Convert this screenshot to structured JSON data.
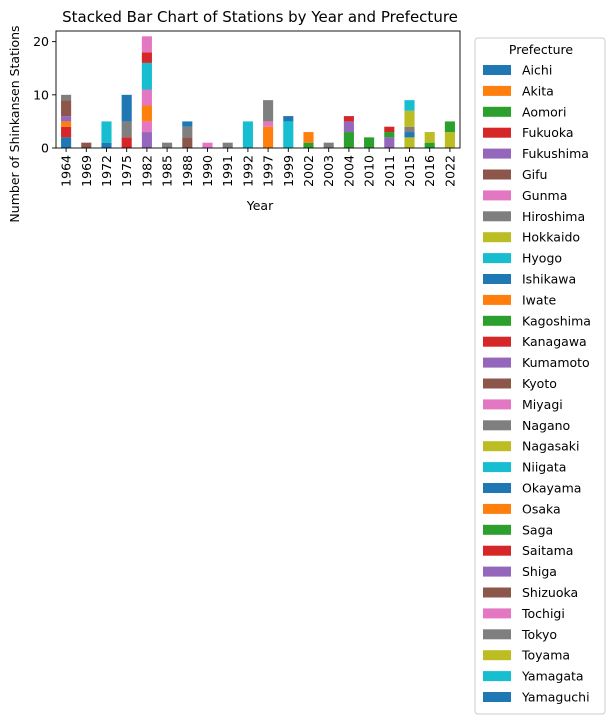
{
  "chart_data": {
    "type": "bar",
    "stacked": true,
    "title": "Stacked Bar Chart of Stations by Year and Prefecture",
    "xlabel": "Year",
    "ylabel": "Number of Shinkansen Stations",
    "ylim": [
      0,
      22
    ],
    "yticks": [
      0,
      10,
      20
    ],
    "grid": false,
    "legend_title": "Prefecture",
    "legend_position": "outside right",
    "categories": [
      "1964",
      "1969",
      "1972",
      "1975",
      "1982",
      "1985",
      "1988",
      "1990",
      "1991",
      "1992",
      "1997",
      "1999",
      "2002",
      "2003",
      "2004",
      "2010",
      "2011",
      "2015",
      "2016",
      "2022"
    ],
    "series": [
      {
        "name": "Aichi",
        "color": "#1f77b4",
        "values": [
          2,
          0,
          0,
          0,
          0,
          0,
          0,
          0,
          0,
          0,
          0,
          0,
          0,
          0,
          0,
          0,
          0,
          0,
          0,
          0
        ]
      },
      {
        "name": "Akita",
        "color": "#ff7f0e",
        "values": [
          0,
          0,
          0,
          0,
          0,
          0,
          0,
          0,
          0,
          0,
          4,
          0,
          0,
          0,
          0,
          0,
          0,
          0,
          0,
          0
        ]
      },
      {
        "name": "Aomori",
        "color": "#2ca02c",
        "values": [
          0,
          0,
          0,
          0,
          0,
          0,
          0,
          0,
          0,
          0,
          0,
          0,
          1,
          0,
          0,
          0,
          0,
          0,
          0,
          0
        ]
      },
      {
        "name": "Fukuoka",
        "color": "#d62728",
        "values": [
          0,
          0,
          0,
          2,
          0,
          0,
          0,
          0,
          0,
          0,
          0,
          0,
          0,
          0,
          0,
          0,
          0,
          0,
          0,
          0
        ]
      },
      {
        "name": "Fukushima",
        "color": "#9467bd",
        "values": [
          0,
          0,
          0,
          0,
          3,
          0,
          0,
          0,
          0,
          0,
          0,
          0,
          0,
          0,
          0,
          0,
          0,
          0,
          0,
          0
        ]
      },
      {
        "name": "Gifu",
        "color": "#8c564b",
        "values": [
          0,
          0,
          0,
          0,
          0,
          0,
          0,
          0,
          0,
          0,
          0,
          0,
          0,
          0,
          0,
          0,
          0,
          0,
          0,
          0
        ]
      },
      {
        "name": "Gunma",
        "color": "#e377c2",
        "values": [
          0,
          0,
          0,
          0,
          2,
          0,
          0,
          0,
          0,
          0,
          0,
          0,
          0,
          0,
          0,
          0,
          0,
          0,
          0,
          0
        ]
      },
      {
        "name": "Hiroshima",
        "color": "#7f7f7f",
        "values": [
          0,
          0,
          0,
          0,
          0,
          0,
          0,
          0,
          0,
          0,
          0,
          0,
          0,
          0,
          0,
          0,
          0,
          0,
          0,
          0
        ]
      },
      {
        "name": "Hokkaido",
        "color": "#bcbd22",
        "values": [
          0,
          0,
          0,
          0,
          0,
          0,
          0,
          0,
          0,
          0,
          0,
          0,
          0,
          0,
          0,
          0,
          0,
          2,
          0,
          0
        ]
      },
      {
        "name": "Hyogo",
        "color": "#17becf",
        "values": [
          0,
          0,
          0,
          0,
          0,
          0,
          0,
          0,
          0,
          0,
          0,
          0,
          0,
          0,
          0,
          0,
          0,
          0,
          0,
          0
        ]
      },
      {
        "name": "Ishikawa",
        "color": "#1f77b4",
        "values": [
          0,
          0,
          0,
          0,
          0,
          0,
          0,
          0,
          0,
          0,
          0,
          0,
          0,
          0,
          0,
          0,
          0,
          1,
          0,
          0
        ]
      },
      {
        "name": "Iwate",
        "color": "#ff7f0e",
        "values": [
          0,
          0,
          0,
          0,
          3,
          0,
          0,
          0,
          0,
          0,
          0,
          0,
          2,
          0,
          0,
          0,
          0,
          0,
          0,
          0
        ]
      },
      {
        "name": "Kagoshima",
        "color": "#2ca02c",
        "values": [
          0,
          0,
          0,
          0,
          0,
          0,
          0,
          0,
          0,
          0,
          0,
          0,
          0,
          0,
          3,
          0,
          0,
          0,
          0,
          0
        ]
      },
      {
        "name": "Kanagawa",
        "color": "#d62728",
        "values": [
          2,
          0,
          0,
          0,
          0,
          0,
          0,
          0,
          0,
          0,
          0,
          0,
          0,
          0,
          0,
          0,
          0,
          0,
          0,
          0
        ]
      },
      {
        "name": "Kumamoto",
        "color": "#9467bd",
        "values": [
          0,
          0,
          0,
          0,
          0,
          0,
          0,
          0,
          0,
          0,
          0,
          0,
          0,
          0,
          2,
          0,
          2,
          0,
          0,
          0
        ]
      },
      {
        "name": "Kyoto",
        "color": "#8c564b",
        "values": [
          0,
          0,
          0,
          0,
          0,
          0,
          0,
          0,
          0,
          0,
          0,
          0,
          0,
          0,
          0,
          0,
          0,
          0,
          0,
          0
        ]
      },
      {
        "name": "Miyagi",
        "color": "#e377c2",
        "values": [
          0,
          0,
          0,
          0,
          3,
          0,
          0,
          0,
          0,
          0,
          0,
          0,
          0,
          0,
          0,
          0,
          0,
          0,
          0,
          0
        ]
      },
      {
        "name": "Nagano",
        "color": "#7f7f7f",
        "values": [
          0,
          0,
          0,
          0,
          0,
          0,
          0,
          0,
          0,
          0,
          0,
          0,
          0,
          0,
          0,
          0,
          0,
          0,
          0,
          0
        ]
      },
      {
        "name": "Nagasaki",
        "color": "#bcbd22",
        "values": [
          0,
          0,
          0,
          0,
          0,
          0,
          0,
          0,
          0,
          0,
          0,
          0,
          0,
          0,
          0,
          0,
          0,
          0,
          0,
          3
        ]
      },
      {
        "name": "Niigata",
        "color": "#17becf",
        "values": [
          0,
          0,
          0,
          0,
          5,
          0,
          0,
          0,
          0,
          0,
          0,
          0,
          0,
          0,
          0,
          0,
          0,
          0,
          0,
          0
        ]
      },
      {
        "name": "Okayama",
        "color": "#1f77b4",
        "values": [
          0,
          0,
          1,
          0,
          0,
          0,
          0,
          0,
          0,
          0,
          0,
          0,
          0,
          0,
          0,
          0,
          0,
          0,
          0,
          0
        ]
      },
      {
        "name": "Osaka",
        "color": "#ff7f0e",
        "values": [
          1,
          0,
          0,
          0,
          0,
          0,
          0,
          0,
          0,
          0,
          0,
          0,
          0,
          0,
          0,
          0,
          0,
          0,
          0,
          0
        ]
      },
      {
        "name": "Saga",
        "color": "#2ca02c",
        "values": [
          0,
          0,
          0,
          0,
          0,
          0,
          0,
          0,
          0,
          0,
          0,
          0,
          0,
          0,
          0,
          2,
          1,
          0,
          1,
          2
        ]
      },
      {
        "name": "Saitama",
        "color": "#d62728",
        "values": [
          0,
          0,
          0,
          0,
          2,
          0,
          0,
          0,
          0,
          0,
          0,
          0,
          0,
          0,
          1,
          0,
          1,
          0,
          0,
          0
        ]
      },
      {
        "name": "Shiga",
        "color": "#9467bd",
        "values": [
          1,
          0,
          0,
          0,
          0,
          0,
          0,
          0,
          0,
          0,
          0,
          0,
          0,
          0,
          0,
          0,
          0,
          0,
          0,
          0
        ]
      },
      {
        "name": "Shizuoka",
        "color": "#8c564b",
        "values": [
          3,
          1,
          0,
          0,
          0,
          0,
          2,
          0,
          0,
          0,
          0,
          0,
          0,
          0,
          0,
          0,
          0,
          0,
          0,
          0
        ]
      },
      {
        "name": "Tochigi",
        "color": "#e377c2",
        "values": [
          0,
          0,
          0,
          0,
          3,
          0,
          0,
          1,
          0,
          0,
          1,
          0,
          0,
          0,
          0,
          0,
          0,
          0,
          0,
          0
        ]
      },
      {
        "name": "Tokyo",
        "color": "#7f7f7f",
        "values": [
          1,
          0,
          0,
          3,
          0,
          1,
          2,
          0,
          1,
          0,
          4,
          0,
          0,
          1,
          0,
          0,
          0,
          1,
          0,
          0
        ]
      },
      {
        "name": "Toyama",
        "color": "#bcbd22",
        "values": [
          0,
          0,
          0,
          0,
          0,
          0,
          0,
          0,
          0,
          0,
          0,
          0,
          0,
          0,
          0,
          0,
          0,
          3,
          2,
          0
        ]
      },
      {
        "name": "Yamagata",
        "color": "#17becf",
        "values": [
          0,
          0,
          4,
          0,
          0,
          0,
          0,
          0,
          0,
          5,
          0,
          5,
          0,
          0,
          0,
          0,
          0,
          2,
          0,
          0
        ]
      },
      {
        "name": "Yamaguchi",
        "color": "#1f77b4",
        "values": [
          0,
          0,
          0,
          5,
          0,
          0,
          1,
          0,
          0,
          0,
          0,
          1,
          0,
          0,
          0,
          0,
          0,
          0,
          0,
          0
        ]
      }
    ]
  }
}
